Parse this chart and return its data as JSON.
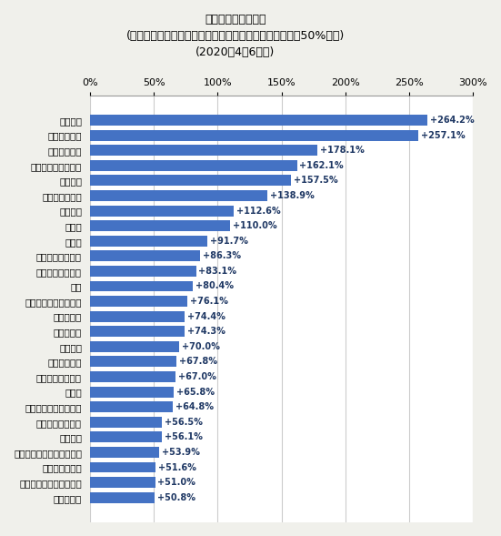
{
  "title_line1": "月あたりの支出金額",
  "title_line2": "(二人以上世帯、品目分類、小区分、前年同期比でプラス50%以上)",
  "title_line3": "(2020年4～6月期)",
  "categories": [
    "食器戸棚",
    "自動車教習料",
    "保健用消耗品",
    "子供用靴・サンダル",
    "ゲーム機",
    "ゲームソフト等",
    "パソコン",
    "ベッド",
    "テレビ",
    "植木・庭手入れ代",
    "他の冷暖房用器具",
    "かに",
    "書斎・学習用机・椅子",
    "家事代行料",
    "他の乳製品",
    "エアコン",
    "冷暖房用器具",
    "理美容用電気器具",
    "小麦粉",
    "チューハイ・カクテル",
    "火災・地震保険料",
    "専修学校",
    "他の家事用消耗品のその他",
    "外傷・皮膚病薬",
    "ペット・他のペット用品",
    "ウイスキー"
  ],
  "values": [
    264.2,
    257.1,
    178.1,
    162.1,
    157.5,
    138.9,
    112.6,
    110.0,
    91.7,
    86.3,
    83.1,
    80.4,
    76.1,
    74.4,
    74.3,
    70.0,
    67.8,
    67.0,
    65.8,
    64.8,
    56.5,
    56.1,
    53.9,
    51.6,
    51.0,
    50.8
  ],
  "bar_color": "#4472c4",
  "label_color": "#1f3864",
  "xlim": [
    0,
    300
  ],
  "xticks": [
    0,
    50,
    100,
    150,
    200,
    250,
    300
  ],
  "xtick_labels": [
    "0%",
    "50%",
    "100%",
    "150%",
    "200%",
    "250%",
    "300%"
  ],
  "bar_height": 0.72,
  "figsize": [
    5.51,
    5.89
  ],
  "dpi": 100,
  "background_color": "#f0f0eb",
  "plot_bg_color": "#ffffff"
}
